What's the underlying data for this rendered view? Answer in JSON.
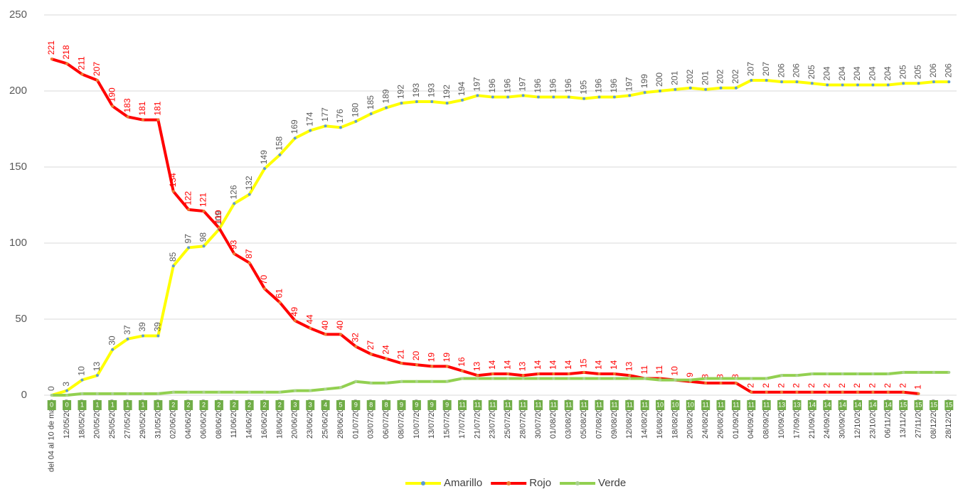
{
  "chart_data": {
    "type": "line",
    "categories": [
      "del 04 al 10 de mayo",
      "12/05/2020",
      "18/05/2020",
      "20/05/2020",
      "25/05/2020",
      "27/05/2020",
      "29/05/2020",
      "31/05/2020",
      "02/06/2020",
      "04/06/2020",
      "06/06/2020",
      "08/06/2020",
      "11/06/2020",
      "14/06/2020",
      "16/06/2020",
      "18/06/2020",
      "20/06/2020",
      "23/06/2020",
      "25/06/2020",
      "28/06/2020",
      "01/07/2020",
      "03/07/2020",
      "06/07/2020",
      "08/07/2020",
      "10/07/2020",
      "13/07/2020",
      "15/07/2020",
      "17/07/2020",
      "21/07/2020",
      "23/07/2020",
      "25/07/2020",
      "28/07/2020",
      "30/07/2020",
      "01/08/2020",
      "03/08/2020",
      "05/08/2020",
      "07/08/2020",
      "09/08/2020",
      "12/08/2020",
      "14/08/2020",
      "16/08/2020",
      "18/08/2020",
      "20/08/2020",
      "24/08/2020",
      "26/08/2020",
      "01/09/2020",
      "04/09/2020",
      "08/09/2020",
      "10/09/2020",
      "17/09/2020",
      "21/09/2020",
      "24/09/2020",
      "30/09/2020",
      "12/10/2020",
      "23/10/2020",
      "06/11/2020",
      "13/11/2020",
      "27/11/2020",
      "08/12/2020",
      "28/12/2020"
    ],
    "series": [
      {
        "name": "Amarillo",
        "color": "#ffff00",
        "marker_color": "#5b9bd5",
        "label_color": "#595959",
        "values": [
          0,
          3,
          10,
          13,
          30,
          37,
          39,
          39,
          85,
          97,
          98,
          109,
          126,
          132,
          149,
          158,
          169,
          174,
          177,
          176,
          180,
          185,
          189,
          192,
          193,
          193,
          192,
          194,
          197,
          196,
          196,
          197,
          196,
          196,
          196,
          195,
          196,
          196,
          197,
          199,
          200,
          201,
          202,
          201,
          202,
          202,
          207,
          207,
          206,
          206,
          205,
          204,
          204,
          204,
          204,
          204,
          205,
          205,
          206,
          206
        ]
      },
      {
        "name": "Rojo",
        "color": "#ff0000",
        "marker_color": "#ed7d31",
        "label_color": "#ff0000",
        "values": [
          221,
          218,
          211,
          207,
          190,
          183,
          181,
          181,
          134,
          122,
          121,
          110,
          93,
          87,
          70,
          61,
          49,
          44,
          40,
          40,
          32,
          27,
          24,
          21,
          20,
          19,
          19,
          16,
          13,
          14,
          14,
          13,
          14,
          14,
          14,
          15,
          14,
          14,
          13,
          11,
          11,
          10,
          9,
          8,
          8,
          8,
          2,
          2,
          2,
          2,
          2,
          2,
          2,
          2,
          2,
          2,
          2,
          1,
          null,
          null
        ]
      },
      {
        "name": "Verde",
        "color": "#92d050",
        "marker_color": "#a9d18e",
        "label_color": "#70ad47",
        "values": [
          0,
          0,
          1,
          1,
          1,
          1,
          1,
          1,
          2,
          2,
          2,
          2,
          2,
          2,
          2,
          2,
          3,
          3,
          4,
          5,
          9,
          8,
          8,
          9,
          9,
          9,
          9,
          11,
          11,
          11,
          11,
          11,
          11,
          11,
          11,
          11,
          11,
          11,
          11,
          11,
          10,
          10,
          10,
          11,
          11,
          11,
          11,
          11,
          13,
          13,
          14,
          14,
          14,
          14,
          14,
          14,
          15,
          15,
          15,
          15
        ]
      }
    ],
    "ylim": [
      0,
      250
    ],
    "yticks": [
      0,
      50,
      100,
      150,
      200,
      250
    ],
    "grid": true,
    "legend": "bottom"
  }
}
